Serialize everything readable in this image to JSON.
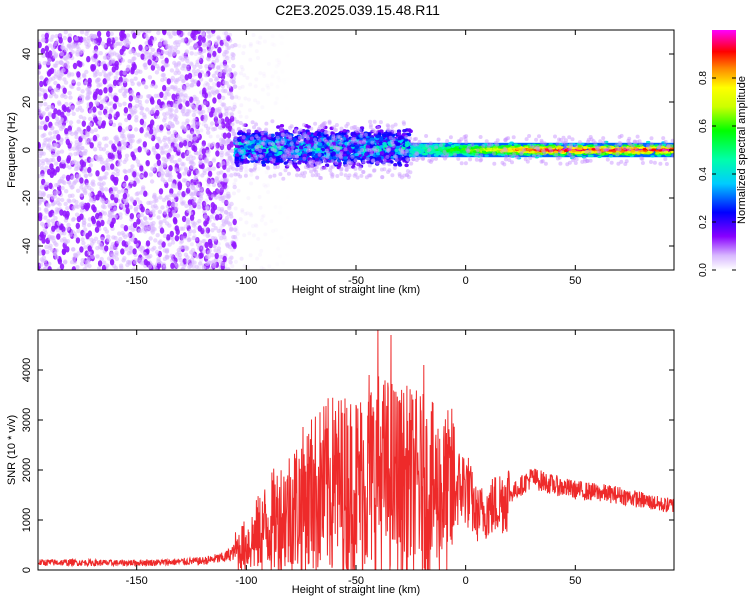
{
  "title": "C2E3.2025.039.15.48.R11",
  "chart_data": [
    {
      "type": "heatmap",
      "xlabel": "Height of straight line (km)",
      "ylabel": "Frequency (Hz)",
      "xlim": [
        -195,
        95
      ],
      "ylim": [
        -50,
        50
      ],
      "xticks": [
        -150,
        -100,
        -50,
        0,
        50
      ],
      "yticks": [
        -40,
        -20,
        0,
        20,
        40
      ],
      "colorbar": {
        "label": "Normalized spectral amplitude",
        "range": [
          0.0,
          1.0
        ],
        "ticks": [
          0.0,
          0.2,
          0.4,
          0.6,
          0.8
        ],
        "colormap": [
          "#ffffff",
          "#8800ff",
          "#0000ff",
          "#00ffff",
          "#00ff00",
          "#ffff00",
          "#ff0000",
          "#ff00ff"
        ]
      },
      "regions": [
        {
          "x_range": [
            -195,
            -105
          ],
          "y_range": [
            -50,
            50
          ],
          "amplitude": 0.1,
          "description": "broad scattered noise"
        },
        {
          "x_range": [
            -105,
            -25
          ],
          "y_range": [
            -8,
            8
          ],
          "amplitude": 0.35
        },
        {
          "x_range": [
            -25,
            95
          ],
          "y_range": [
            -3,
            3
          ],
          "amplitude": 0.9
        }
      ]
    },
    {
      "type": "line",
      "xlabel": "Height of straight line (km)",
      "ylabel": "SNR (10 * v/v)",
      "xlim": [
        -195,
        95
      ],
      "ylim": [
        0,
        4800
      ],
      "xticks": [
        -150,
        -100,
        -50,
        0,
        50
      ],
      "yticks": [
        0,
        1000,
        2000,
        3000,
        4000
      ],
      "color": "#ee2a2a",
      "series": [
        {
          "x": [
            -195,
            -180,
            -160,
            -140,
            -120,
            -110,
            -100,
            -90,
            -80,
            -70,
            -60,
            -50,
            -40,
            -30,
            -20,
            -15,
            -10,
            -5,
            0,
            5,
            10,
            20,
            30,
            40,
            50,
            60,
            70,
            80,
            90,
            95
          ],
          "values": [
            150,
            150,
            140,
            150,
            180,
            250,
            500,
            900,
            1200,
            1500,
            1700,
            1700,
            1900,
            1800,
            1700,
            1600,
            1500,
            1600,
            1700,
            1100,
            1200,
            1500,
            1850,
            1700,
            1600,
            1550,
            1500,
            1400,
            1300,
            1300
          ],
          "peaks": [
            {
              "x": -70,
              "y": 2500
            },
            {
              "x": -60,
              "y": 3000
            },
            {
              "x": -50,
              "y": 3300
            },
            {
              "x": -44,
              "y": 3900
            },
            {
              "x": -40,
              "y": 4800
            },
            {
              "x": -34,
              "y": 4700
            },
            {
              "x": -30,
              "y": 3400
            },
            {
              "x": -25,
              "y": 3000
            },
            {
              "x": -19,
              "y": 4100
            },
            {
              "x": -10,
              "y": 2600
            }
          ]
        }
      ]
    }
  ]
}
